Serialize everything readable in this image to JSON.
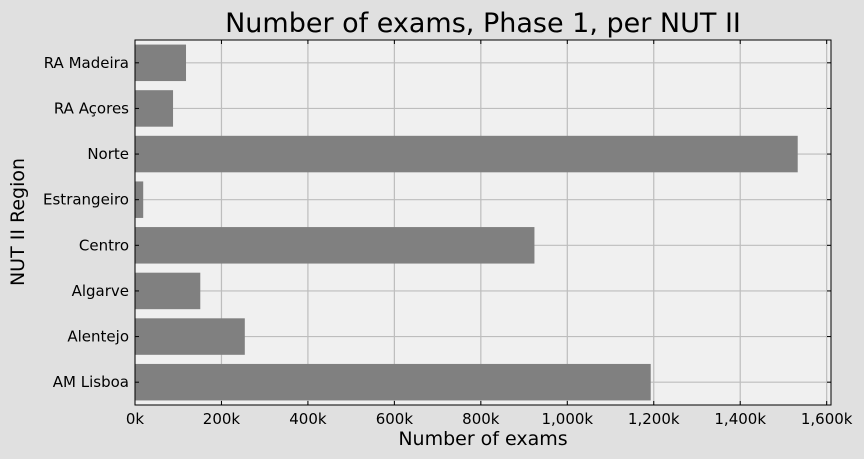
{
  "chart_data": {
    "type": "bar",
    "orientation": "horizontal",
    "title": "Number of exams, Phase 1, per NUT II",
    "xlabel": "Number of exams",
    "ylabel": "NUT II Region",
    "categories": [
      "AM Lisboa",
      "Alentejo",
      "Algarve",
      "Centro",
      "Estrangeiro",
      "Norte",
      "RA Açores",
      "RA Madeira"
    ],
    "values": [
      1193000,
      254000,
      151000,
      924000,
      19000,
      1533000,
      88000,
      118000
    ],
    "xlim": [
      0,
      1610000
    ],
    "xticks": [
      0,
      200000,
      400000,
      600000,
      800000,
      1000000,
      1200000,
      1400000,
      1600000
    ],
    "xtick_labels": [
      "0k",
      "200k",
      "400k",
      "600k",
      "800k",
      "1,000k",
      "1,200k",
      "1,400k",
      "1,600k"
    ],
    "grid": true,
    "bar_color": "#808080",
    "background_color": "#f0f0f0",
    "figure_color": "#e0e0e0"
  }
}
